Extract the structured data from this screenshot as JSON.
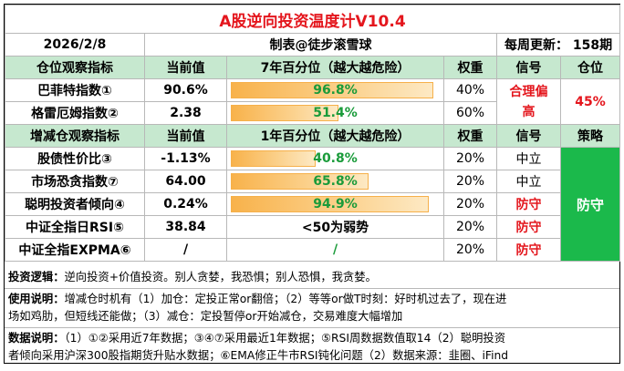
{
  "title": "A股逆向投资温度计V10.4",
  "info": {
    "date": "2026/2/8",
    "author": "制表@徒步滚雪球",
    "update": "每周更新：  158期"
  },
  "pos_header": [
    "仓位观察指标",
    "当前值",
    "7年百分位（越大越危险）",
    "权重",
    "信号",
    "仓位"
  ],
  "pos_rows": [
    {
      "name": "巴菲特指数①",
      "value": "90.6%",
      "pct_label": "96.8%",
      "pct": 96.8,
      "weight": "40%"
    },
    {
      "name": "格雷厄姆指数②",
      "value": "2.38",
      "pct_label": "51.4%",
      "pct": 51.4,
      "weight": "60%"
    }
  ],
  "pos_signal": "合理偏高",
  "pos_value": "45%",
  "adj_header": [
    "增减仓观察指标",
    "当前值",
    "1年百分位（越大越危险）",
    "权重",
    "信号",
    "策略"
  ],
  "adj_rows": [
    {
      "name": "股债性价比③",
      "value": "-1.13%",
      "pct_label": "40.8%",
      "pct": 40.8,
      "weight": "20%",
      "signal": "中立",
      "signal_red": false
    },
    {
      "name": "市场恐贪指数⑦",
      "value": "64.00",
      "pct_label": "65.8%",
      "pct": 65.8,
      "weight": "20%",
      "signal": "中立",
      "signal_red": false
    },
    {
      "name": "聪明投资者倾向④",
      "value": "0.24%",
      "pct_label": "94.9%",
      "pct": 94.9,
      "weight": "20%",
      "signal": "防守",
      "signal_red": true
    },
    {
      "name": "中证全指日RSI⑤",
      "value": "38.84",
      "pct_label": "<50为弱势",
      "pct": null,
      "weight": "20%",
      "signal": "防守",
      "signal_red": true
    },
    {
      "name": "中证全指EXPMA⑥",
      "value": "/",
      "pct_label": "/",
      "pct": null,
      "weight": "20%",
      "signal": "防守",
      "signal_red": true
    }
  ],
  "strategy": "防守",
  "notes": {
    "logic_label": "投资逻辑：",
    "logic": "逆向投资+价值投资。别人贪婪，我恐惧；别人恐惧，我贪婪。",
    "usage_label": "使用说明：",
    "usage_1": "增减仓时机有（1）加仓：定投正常or翻倍；（2）等等or做T时刻：好时机过去了，现在进",
    "usage_2": "场如鸡肋，但短线还能做；（3）减仓：定投暂停or开始减仓，交易难度大幅增加",
    "data_label": "数据说明：",
    "data_1": "（1）①②采用近7年数据；③④⑦采用最近1年数据；⑤RSI周数据数值取14（2）聪明投资",
    "data_2": "者倾向采用沪深300股指期货升贴水数据；⑥EMA修正牛市RSI钝化问题（2）数据来源：韭圈、iFind"
  },
  "colors": {
    "title_red": "#e4161d",
    "header_green": "#c6e8cf",
    "value_green": "#1a9b3a",
    "bar_orange": "#f8b24b",
    "strategy_green": "#1bb94b"
  }
}
